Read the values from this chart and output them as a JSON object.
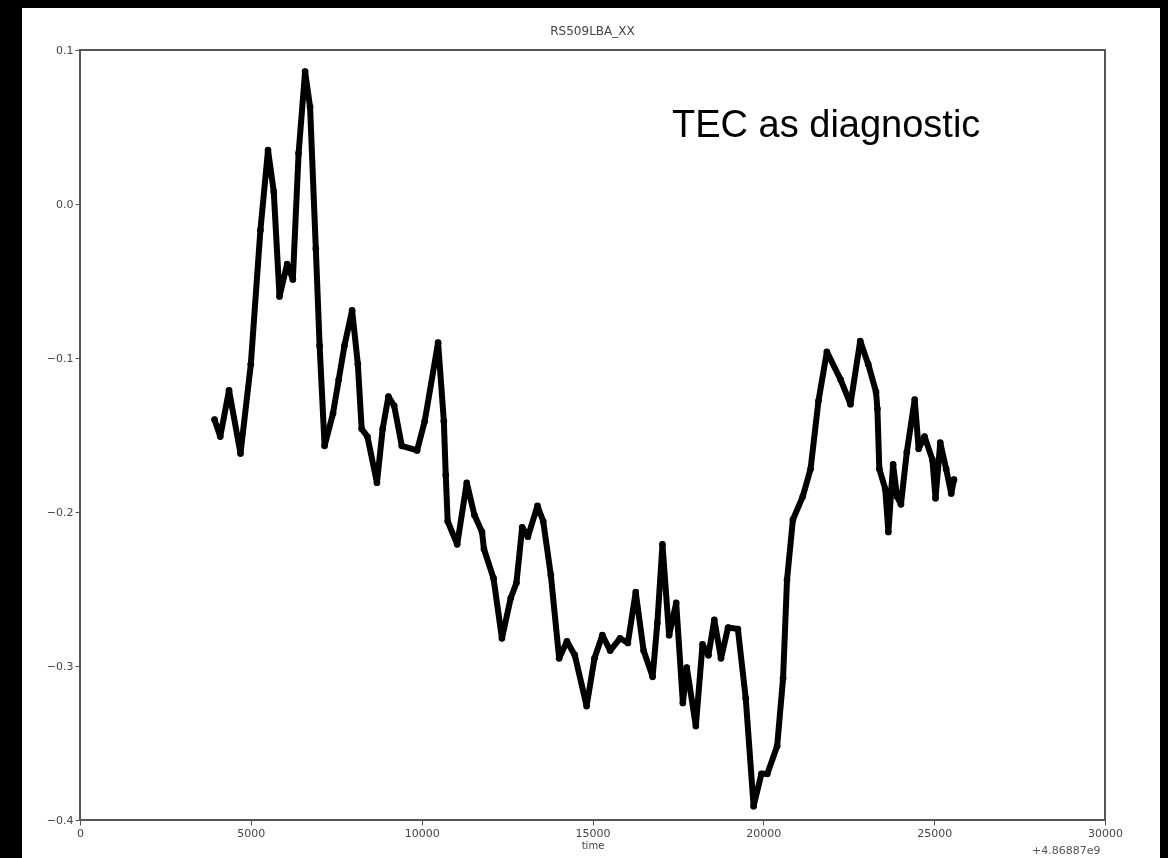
{
  "chart_data": {
    "type": "line",
    "title": "RS509LBA_XX",
    "xlabel": "time",
    "annotations": [
      "TEC as diagnostic",
      "+4.86887e9"
    ],
    "xlim": [
      0,
      30000
    ],
    "xticks": [
      0,
      5000,
      10000,
      15000,
      20000,
      25000,
      30000
    ],
    "ylim": [
      -0.4,
      0.1
    ],
    "yticks": [
      -0.4,
      -0.3,
      -0.2,
      -0.1,
      {
        "value": 0,
        "label": "0.0"
      },
      0.1
    ],
    "grid": false,
    "marker": "circle",
    "line_style": "solid",
    "series": [
      {
        "color": "#000000",
        "x": [
          3937,
          4105,
          4362,
          4698,
          5000,
          5280,
          5503,
          5671,
          5839,
          6063,
          6230,
          6398,
          6588,
          6734,
          6902,
          7013,
          7159,
          7405,
          7573,
          7740,
          7964,
          8132,
          8244,
          8412,
          8691,
          8859,
          9027,
          9195,
          9418,
          9866,
          10089,
          10481,
          10649,
          10705,
          10761,
          11040,
          11320,
          11544,
          11767,
          11823,
          12103,
          12349,
          12606,
          12774,
          12942,
          13110,
          13389,
          13557,
          13781,
          14023,
          14253,
          14483,
          14828,
          15058,
          15288,
          15518,
          15805,
          16035,
          16265,
          16495,
          16760,
          16898,
          17047,
          17243,
          17450,
          17645,
          17760,
          18025,
          18220,
          18393,
          18565,
          18761,
          18968,
          19255,
          19485,
          19715,
          19945,
          20118,
          20405,
          20578,
          20693,
          20865,
          21153,
          21383,
          21613,
          21860,
          22262,
          22550,
          22836,
          23070,
          23298,
          23338,
          23395,
          23568,
          23660,
          23798,
          23913,
          24028,
          24200,
          24430,
          24545,
          24718,
          24948,
          25040,
          25178,
          25350,
          25500,
          25580
        ],
        "values": [
          -0.14,
          -0.151,
          -0.121,
          -0.162,
          -0.104,
          -0.017,
          0.035,
          0.008,
          -0.06,
          -0.039,
          -0.049,
          0.033,
          0.086,
          0.063,
          -0.029,
          -0.092,
          -0.157,
          -0.136,
          -0.114,
          -0.092,
          -0.069,
          -0.104,
          -0.146,
          -0.151,
          -0.181,
          -0.146,
          -0.125,
          -0.131,
          -0.157,
          -0.16,
          -0.141,
          -0.09,
          -0.141,
          -0.176,
          -0.206,
          -0.221,
          -0.181,
          -0.202,
          -0.213,
          -0.224,
          -0.243,
          -0.282,
          -0.256,
          -0.246,
          -0.21,
          -0.216,
          -0.196,
          -0.206,
          -0.241,
          -0.295,
          -0.284,
          -0.293,
          -0.326,
          -0.295,
          -0.28,
          -0.29,
          -0.282,
          -0.285,
          -0.252,
          -0.29,
          -0.307,
          -0.272,
          -0.221,
          -0.28,
          -0.259,
          -0.324,
          -0.301,
          -0.339,
          -0.286,
          -0.293,
          -0.27,
          -0.295,
          -0.275,
          -0.276,
          -0.321,
          -0.391,
          -0.37,
          -0.37,
          -0.352,
          -0.308,
          -0.244,
          -0.205,
          -0.19,
          -0.172,
          -0.128,
          -0.096,
          -0.114,
          -0.13,
          -0.089,
          -0.104,
          -0.122,
          -0.133,
          -0.172,
          -0.185,
          -0.213,
          -0.169,
          -0.19,
          -0.195,
          -0.161,
          -0.127,
          -0.159,
          -0.151,
          -0.166,
          -0.191,
          -0.155,
          -0.172,
          -0.188,
          -0.179
        ]
      }
    ]
  }
}
